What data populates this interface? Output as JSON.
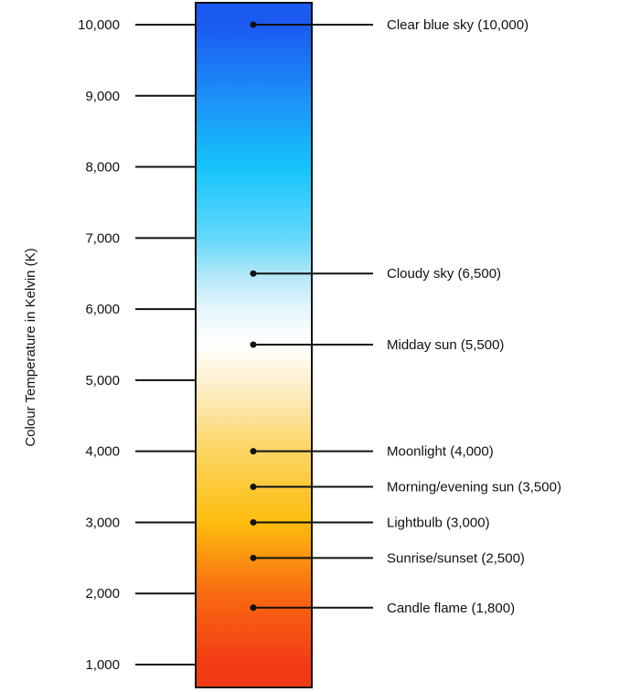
{
  "chart_data": {
    "type": "scale",
    "title": "",
    "ylabel": "Colour Temperature in Kelvin (K)",
    "ylim": [
      1000,
      10000
    ],
    "y_ticks": [
      {
        "value": 1000,
        "label": "1,000"
      },
      {
        "value": 2000,
        "label": "2,000"
      },
      {
        "value": 3000,
        "label": "3,000"
      },
      {
        "value": 4000,
        "label": "4,000"
      },
      {
        "value": 5000,
        "label": "5,000"
      },
      {
        "value": 6000,
        "label": "6,000"
      },
      {
        "value": 7000,
        "label": "7,000"
      },
      {
        "value": 8000,
        "label": "8,000"
      },
      {
        "value": 9000,
        "label": "9,000"
      },
      {
        "value": 10000,
        "label": "10,000"
      }
    ],
    "annotations": [
      {
        "value": 10000,
        "label": "Clear blue sky (10,000)"
      },
      {
        "value": 6500,
        "label": "Cloudy sky (6,500)"
      },
      {
        "value": 5500,
        "label": "Midday sun (5,500)"
      },
      {
        "value": 4000,
        "label": "Moonlight (4,000)"
      },
      {
        "value": 3500,
        "label": "Morning/evening sun (3,500)"
      },
      {
        "value": 3000,
        "label": "Lightbulb (3,000)"
      },
      {
        "value": 2500,
        "label": "Sunrise/sunset (2,500)"
      },
      {
        "value": 1800,
        "label": "Candle flame (1,800)"
      }
    ],
    "gradient": [
      {
        "value": 10000,
        "color": "#1a5af0"
      },
      {
        "value": 9000,
        "color": "#1d8ff8"
      },
      {
        "value": 8000,
        "color": "#14c4fb"
      },
      {
        "value": 7000,
        "color": "#63d8fb"
      },
      {
        "value": 6500,
        "color": "#aee6f8"
      },
      {
        "value": 6000,
        "color": "#e6f6fc"
      },
      {
        "value": 5500,
        "color": "#ffffff"
      },
      {
        "value": 5000,
        "color": "#fdf1d2"
      },
      {
        "value": 4000,
        "color": "#fcd462"
      },
      {
        "value": 3000,
        "color": "#fcbd0c"
      },
      {
        "value": 2000,
        "color": "#f96a12"
      },
      {
        "value": 1000,
        "color": "#f23a14"
      }
    ]
  }
}
